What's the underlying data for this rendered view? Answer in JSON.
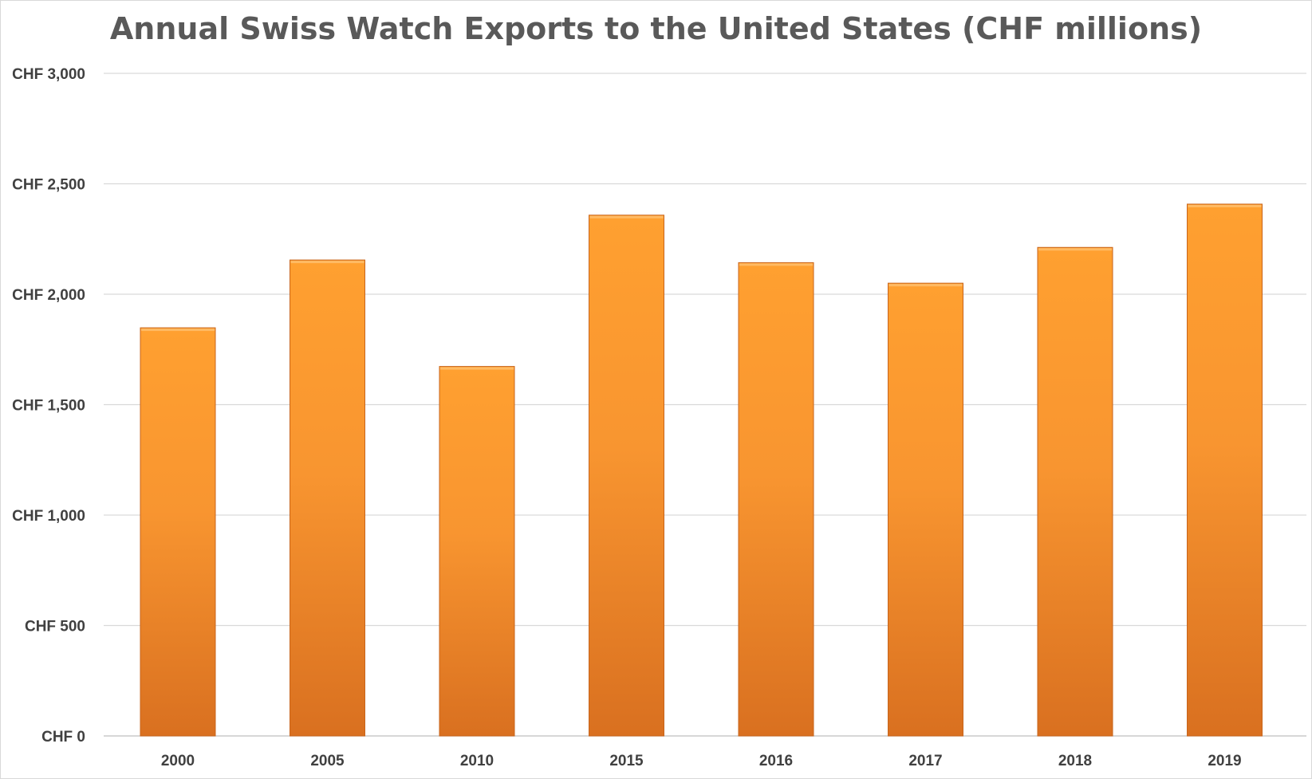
{
  "chart_data": {
    "type": "bar",
    "title": "Annual Swiss Watch Exports to the United States (CHF millions)",
    "xlabel": "",
    "ylabel": "",
    "categories": [
      "2000",
      "2005",
      "2010",
      "2015",
      "2016",
      "2017",
      "2018",
      "2019"
    ],
    "values": [
      1848,
      2155,
      1673,
      2358,
      2143,
      2050,
      2212,
      2408
    ],
    "ylim": [
      0,
      3000
    ],
    "yticks": [
      0,
      500,
      1000,
      1500,
      2000,
      2500,
      3000
    ],
    "ytick_labels": [
      "CHF 0",
      "CHF 500",
      "CHF 1,000",
      "CHF 1,500",
      "CHF 2,000",
      "CHF 2,500",
      "CHF 3,000"
    ],
    "grid": true,
    "legend": "none",
    "bar_colors": {
      "top": "#FFA030",
      "mid": "#F89530",
      "bottom": "#D97020",
      "edge": "#C8651C"
    },
    "grid_color": "#d9d9d9",
    "text_color": "#404040",
    "title_color": "#595959"
  }
}
